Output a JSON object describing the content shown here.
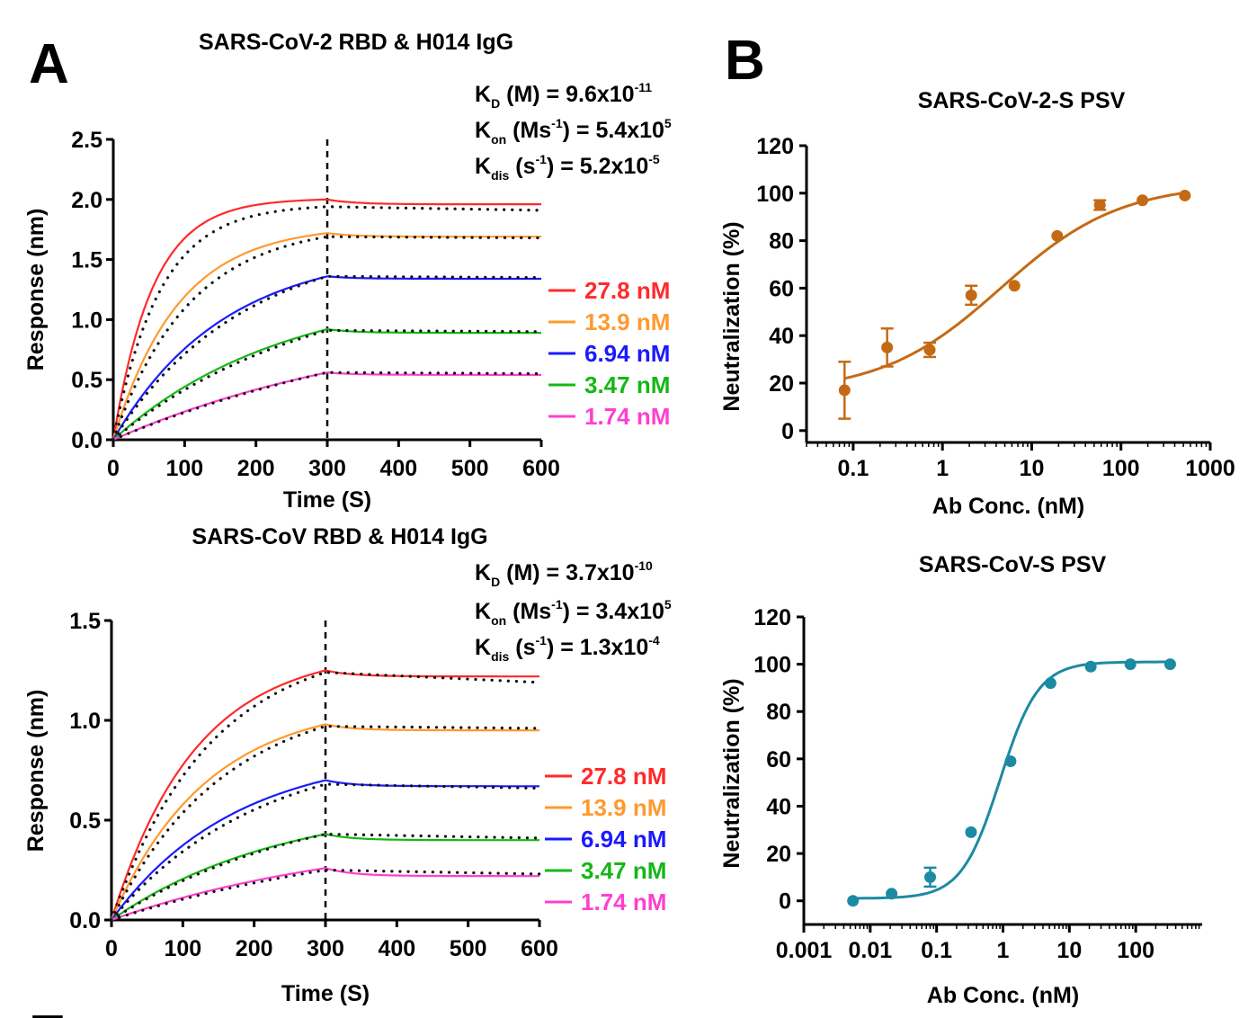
{
  "panel_labels": {
    "a": "A",
    "b": "B",
    "bottom_edge": "E"
  },
  "colors": {
    "c27_8": "#ff2a2a",
    "c13_9": "#ff9a2e",
    "c6_94": "#1a1aff",
    "c3_47": "#14b814",
    "c1_74": "#ff3fd0",
    "fit": "#111111",
    "neut_cov2": "#c46a14",
    "neut_cov": "#1c8aa3"
  },
  "chart_data": [
    {
      "id": "a1",
      "type": "line",
      "title": "SARS-CoV-2 RBD & H014 IgG",
      "xlabel": "Time (S)",
      "ylabel": "Response (nm)",
      "xlim": [
        0,
        600
      ],
      "ylim": [
        0,
        2.5
      ],
      "x_ticks": [
        "0",
        "100",
        "200",
        "300",
        "400",
        "500",
        "600"
      ],
      "y_ticks": [
        "0.0",
        "0.5",
        "1.0",
        "1.5",
        "2.0",
        "2.5"
      ],
      "dissociation_start_time": 300,
      "kinetics": {
        "kd": {
          "main": "K",
          "sub": "D",
          "label": " (M) = 9.6x10",
          "exp": "-11"
        },
        "kon": {
          "main": "K",
          "sub": "on",
          "label": " (Ms",
          "label_exp": "-1",
          "label_end": ") = 5.4x10",
          "exp": "5"
        },
        "kdis": {
          "main": "K",
          "sub": "dis",
          "label": " (s",
          "label_exp": "-1",
          "label_end": ") = 5.2x10",
          "exp": "-5"
        }
      },
      "series": [
        {
          "name": "27.8 nM",
          "color_key": "c27_8",
          "peak": 2.0,
          "end": 1.96,
          "fit_peak": 1.94,
          "fit_end": 1.91,
          "k": 0.018
        },
        {
          "name": "13.9 nM",
          "color_key": "c13_9",
          "peak": 1.72,
          "end": 1.69,
          "fit_peak": 1.69,
          "fit_end": 1.68,
          "k": 0.011
        },
        {
          "name": "6.94 nM",
          "color_key": "c6_94",
          "peak": 1.36,
          "end": 1.34,
          "fit_peak": 1.36,
          "fit_end": 1.35,
          "k": 0.0065
        },
        {
          "name": "3.47 nM",
          "color_key": "c3_47",
          "peak": 0.92,
          "end": 0.89,
          "fit_peak": 0.91,
          "fit_end": 0.9,
          "k": 0.0042
        },
        {
          "name": "1.74 nM",
          "color_key": "c1_74",
          "peak": 0.56,
          "end": 0.54,
          "fit_peak": 0.56,
          "fit_end": 0.55,
          "k": 0.0025
        }
      ]
    },
    {
      "id": "a2",
      "type": "line",
      "title": "SARS-CoV RBD & H014 IgG",
      "xlabel": "Time (S)",
      "ylabel": "Response (nm)",
      "xlim": [
        0,
        600
      ],
      "ylim": [
        0,
        1.5
      ],
      "x_ticks": [
        "0",
        "100",
        "200",
        "300",
        "400",
        "500",
        "600"
      ],
      "y_ticks": [
        "0.0",
        "0.5",
        "1.0",
        "1.5"
      ],
      "dissociation_start_time": 300,
      "kinetics": {
        "kd": {
          "main": "K",
          "sub": "D",
          "label": " (M) = 3.7x10",
          "exp": "-10"
        },
        "kon": {
          "main": "K",
          "sub": "on",
          "label": " (Ms",
          "label_exp": "-1",
          "label_end": ") = 3.4x10",
          "exp": "5"
        },
        "kdis": {
          "main": "K",
          "sub": "dis",
          "label": " (s",
          "label_exp": "-1",
          "label_end": ") = 1.3x10",
          "exp": "-4"
        }
      },
      "series": [
        {
          "name": "27.8 nM",
          "color_key": "c27_8",
          "peak": 1.25,
          "end": 1.22,
          "fit_peak": 1.24,
          "fit_end": 1.19,
          "k": 0.0085
        },
        {
          "name": "13.9 nM",
          "color_key": "c13_9",
          "peak": 0.98,
          "end": 0.95,
          "fit_peak": 0.97,
          "fit_end": 0.96,
          "k": 0.0075
        },
        {
          "name": "6.94 nM",
          "color_key": "c6_94",
          "peak": 0.7,
          "end": 0.67,
          "fit_peak": 0.68,
          "fit_end": 0.66,
          "k": 0.0058
        },
        {
          "name": "3.47 nM",
          "color_key": "c3_47",
          "peak": 0.43,
          "end": 0.4,
          "fit_peak": 0.43,
          "fit_end": 0.41,
          "k": 0.0042
        },
        {
          "name": "1.74 nM",
          "color_key": "c1_74",
          "peak": 0.26,
          "end": 0.22,
          "fit_peak": 0.25,
          "fit_end": 0.23,
          "k": 0.0028
        }
      ]
    },
    {
      "id": "b1",
      "type": "scatter",
      "title": "SARS-CoV-2-S PSV",
      "xlabel": "Ab Conc. (nM)",
      "ylabel": "Neutralization (%)",
      "x_scale": "log",
      "xlim": [
        0.03,
        1000
      ],
      "ylim": [
        -5,
        120
      ],
      "x_ticks": [
        {
          "v": 0.1,
          "label": "0.1"
        },
        {
          "v": 1,
          "label": "1"
        },
        {
          "v": 10,
          "label": "10"
        },
        {
          "v": 100,
          "label": "100"
        },
        {
          "v": 1000,
          "label": "1000"
        }
      ],
      "y_ticks": [
        0,
        20,
        40,
        60,
        80,
        100,
        120
      ],
      "color_key": "neut_cov2",
      "points": [
        {
          "x": 0.08,
          "y": 17,
          "err": 12
        },
        {
          "x": 0.24,
          "y": 35,
          "err": 8
        },
        {
          "x": 0.72,
          "y": 34,
          "err": 3
        },
        {
          "x": 2.1,
          "y": 57,
          "err": 4
        },
        {
          "x": 6.4,
          "y": 61,
          "err": 0
        },
        {
          "x": 19.3,
          "y": 82,
          "err": 0
        },
        {
          "x": 58,
          "y": 95,
          "err": 2
        },
        {
          "x": 174,
          "y": 97,
          "err": 0
        },
        {
          "x": 520,
          "y": 99,
          "err": 0
        }
      ],
      "fit": {
        "bottom": 16,
        "top": 104,
        "ec50": 4.5,
        "hill": 0.65
      }
    },
    {
      "id": "b2",
      "type": "scatter",
      "title": "SARS-CoV-S PSV",
      "xlabel": "Ab Conc. (nM)",
      "ylabel": "Neutralization (%)",
      "x_scale": "log",
      "xlim": [
        0.001,
        1000
      ],
      "ylim": [
        -10,
        120
      ],
      "x_ticks": [
        {
          "v": 0.001,
          "label": "0.001"
        },
        {
          "v": 0.01,
          "label": "0.01"
        },
        {
          "v": 0.1,
          "label": "0.1"
        },
        {
          "v": 1,
          "label": "1"
        },
        {
          "v": 10,
          "label": "10"
        },
        {
          "v": 100,
          "label": "100"
        }
      ],
      "y_ticks": [
        0,
        20,
        40,
        60,
        80,
        100,
        120
      ],
      "color_key": "neut_cov",
      "points": [
        {
          "x": 0.0055,
          "y": 0,
          "err": 0
        },
        {
          "x": 0.021,
          "y": 3,
          "err": 0
        },
        {
          "x": 0.08,
          "y": 10,
          "err": 4
        },
        {
          "x": 0.33,
          "y": 29,
          "err": 0
        },
        {
          "x": 1.3,
          "y": 59,
          "err": 0
        },
        {
          "x": 5.2,
          "y": 92,
          "err": 0
        },
        {
          "x": 21,
          "y": 99,
          "err": 0
        },
        {
          "x": 83,
          "y": 100,
          "err": 0
        },
        {
          "x": 330,
          "y": 100,
          "err": 0
        }
      ],
      "fit": {
        "bottom": 1,
        "top": 101,
        "ec50": 0.9,
        "hill": 1.5
      }
    }
  ]
}
